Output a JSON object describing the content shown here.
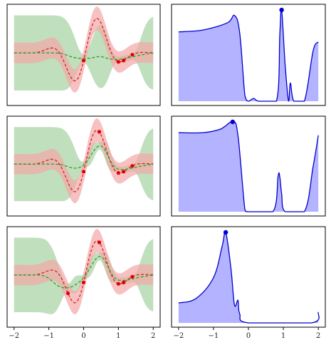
{
  "chart_data": {
    "type": "line",
    "layout": "3 rows x 2 columns of subplots",
    "x_range": [
      -2.2,
      2.2
    ],
    "x_ticks": [
      "−2",
      "−1",
      "0",
      "1",
      "2"
    ],
    "grid": false,
    "legend": "none",
    "colors": {
      "target": "#d62728",
      "target_band": "#f4a6a6",
      "model": "#2ca02c",
      "model_band": "#b5d9b1",
      "observation": "#e00000",
      "acquisition": "#0000cc",
      "acquisition_fill": "#b3b3ff"
    },
    "rows": [
      {
        "left": {
          "observations_x": [
            0.0,
            1.0,
            1.15,
            1.4
          ],
          "model_band_widening_at_edges": true
        },
        "right": {
          "acquisition": [
            [
              -2.0,
              0.76
            ],
            [
              -1.3,
              0.78
            ],
            [
              -0.6,
              0.86
            ],
            [
              -0.4,
              0.94
            ],
            [
              -0.25,
              0.75
            ],
            [
              -0.1,
              0.06
            ],
            [
              0.0,
              0.0
            ],
            [
              0.15,
              0.03
            ],
            [
              0.3,
              0.0
            ],
            [
              0.8,
              0.0
            ],
            [
              0.9,
              0.75
            ],
            [
              0.95,
              1.0
            ],
            [
              1.05,
              0.4
            ],
            [
              1.15,
              0.0
            ],
            [
              1.2,
              0.2
            ],
            [
              1.3,
              0.0
            ],
            [
              1.6,
              0.0
            ],
            [
              1.85,
              0.55
            ],
            [
              2.0,
              0.65
            ]
          ],
          "max_marker_x": 0.95
        }
      },
      {
        "left": {
          "observations_x": [
            0.0,
            0.45,
            1.0,
            1.15,
            1.4
          ],
          "model_band_widening_at_edges": true
        },
        "right": {
          "acquisition": [
            [
              -2.0,
              0.88
            ],
            [
              -1.3,
              0.88
            ],
            [
              -0.8,
              0.92
            ],
            [
              -0.45,
              1.0
            ],
            [
              -0.3,
              0.85
            ],
            [
              -0.1,
              0.02
            ],
            [
              0.0,
              0.0
            ],
            [
              0.7,
              0.0
            ],
            [
              0.85,
              0.4
            ],
            [
              0.9,
              0.38
            ],
            [
              0.95,
              0.2
            ],
            [
              1.05,
              0.0
            ],
            [
              1.6,
              0.0
            ],
            [
              1.85,
              0.5
            ],
            [
              2.0,
              0.85
            ]
          ],
          "max_marker_x": -0.45
        }
      },
      {
        "left": {
          "observations_x": [
            -0.45,
            0.0,
            0.45,
            1.0,
            1.15,
            1.4
          ],
          "model_band_widening_at_edges": true
        },
        "right": {
          "acquisition": [
            [
              -2.0,
              0.22
            ],
            [
              -1.5,
              0.27
            ],
            [
              -1.0,
              0.5
            ],
            [
              -0.75,
              0.85
            ],
            [
              -0.65,
              1.0
            ],
            [
              -0.5,
              0.6
            ],
            [
              -0.4,
              0.2
            ],
            [
              -0.3,
              0.25
            ],
            [
              -0.25,
              0.1
            ],
            [
              0.0,
              0.0
            ],
            [
              1.8,
              0.0
            ],
            [
              2.0,
              0.12
            ]
          ],
          "max_marker_x": -0.65
        }
      }
    ]
  }
}
